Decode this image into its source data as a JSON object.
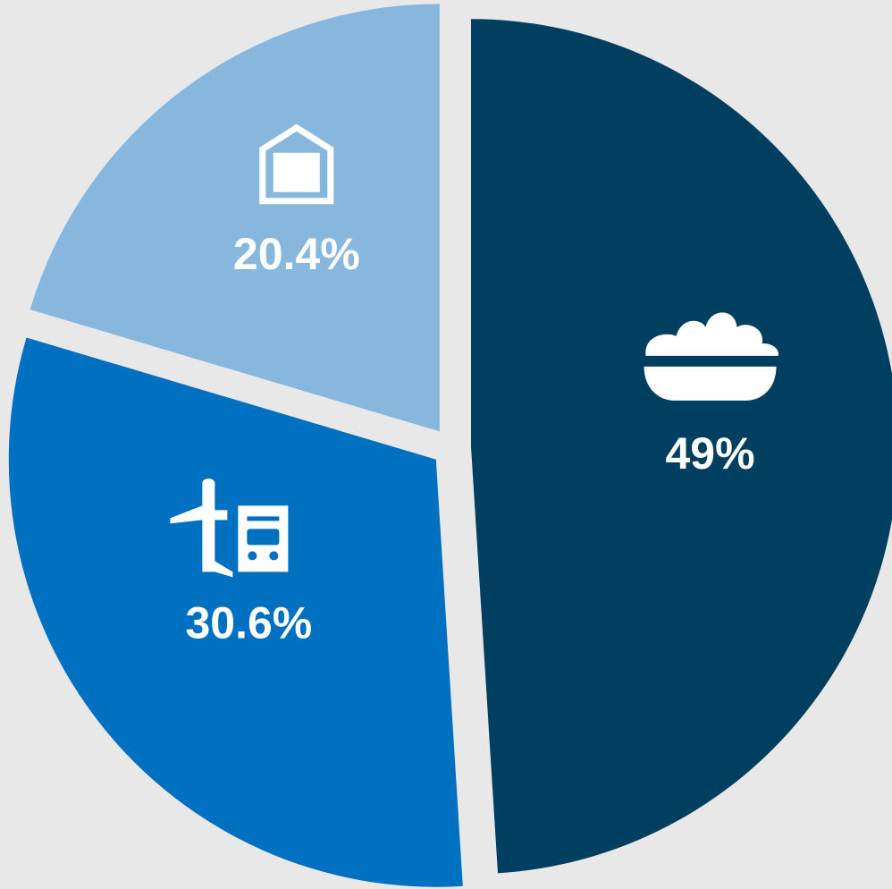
{
  "chart_data": {
    "type": "pie",
    "values": [
      49,
      30.6,
      20.4
    ],
    "value_labels": [
      "49%",
      "30.6%",
      "20.4%"
    ],
    "colors": [
      "#003f5f",
      "#0070c0",
      "#88b7de"
    ]
  }
}
